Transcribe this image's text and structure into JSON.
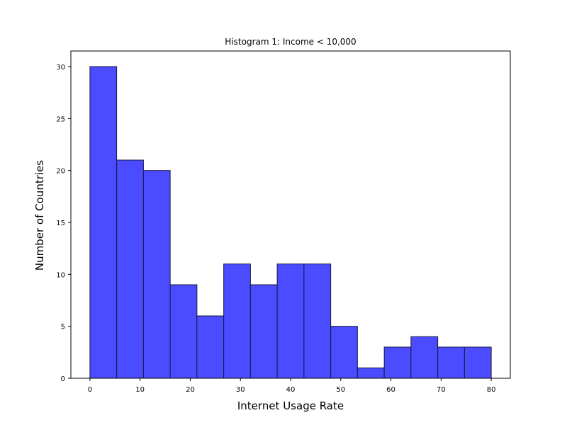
{
  "chart_data": {
    "type": "bar",
    "title": "Histogram 1: Income < 10,000",
    "xlabel": "Internet Usage Rate",
    "ylabel": "Number of Countries",
    "xlim": [
      -3.8,
      83.8
    ],
    "ylim": [
      0,
      31.5
    ],
    "xticks": [
      0,
      10,
      20,
      30,
      40,
      50,
      60,
      70,
      80
    ],
    "yticks": [
      0,
      5,
      10,
      15,
      20,
      25,
      30
    ],
    "grid": false,
    "bar_color": "#4b4bff",
    "edge_color": "#1a1a40",
    "bins": [
      {
        "x0": 0.0,
        "x1": 5.33,
        "count": 30
      },
      {
        "x0": 5.33,
        "x1": 10.67,
        "count": 21
      },
      {
        "x0": 10.67,
        "x1": 16.0,
        "count": 20
      },
      {
        "x0": 16.0,
        "x1": 21.33,
        "count": 9
      },
      {
        "x0": 21.33,
        "x1": 26.67,
        "count": 6
      },
      {
        "x0": 26.67,
        "x1": 32.0,
        "count": 11
      },
      {
        "x0": 32.0,
        "x1": 37.33,
        "count": 9
      },
      {
        "x0": 37.33,
        "x1": 42.67,
        "count": 11
      },
      {
        "x0": 42.67,
        "x1": 48.0,
        "count": 11
      },
      {
        "x0": 48.0,
        "x1": 53.33,
        "count": 5
      },
      {
        "x0": 53.33,
        "x1": 58.67,
        "count": 1
      },
      {
        "x0": 58.67,
        "x1": 64.0,
        "count": 3
      },
      {
        "x0": 64.0,
        "x1": 69.33,
        "count": 4
      },
      {
        "x0": 69.33,
        "x1": 74.67,
        "count": 3
      },
      {
        "x0": 74.67,
        "x1": 80.0,
        "count": 3
      }
    ]
  }
}
